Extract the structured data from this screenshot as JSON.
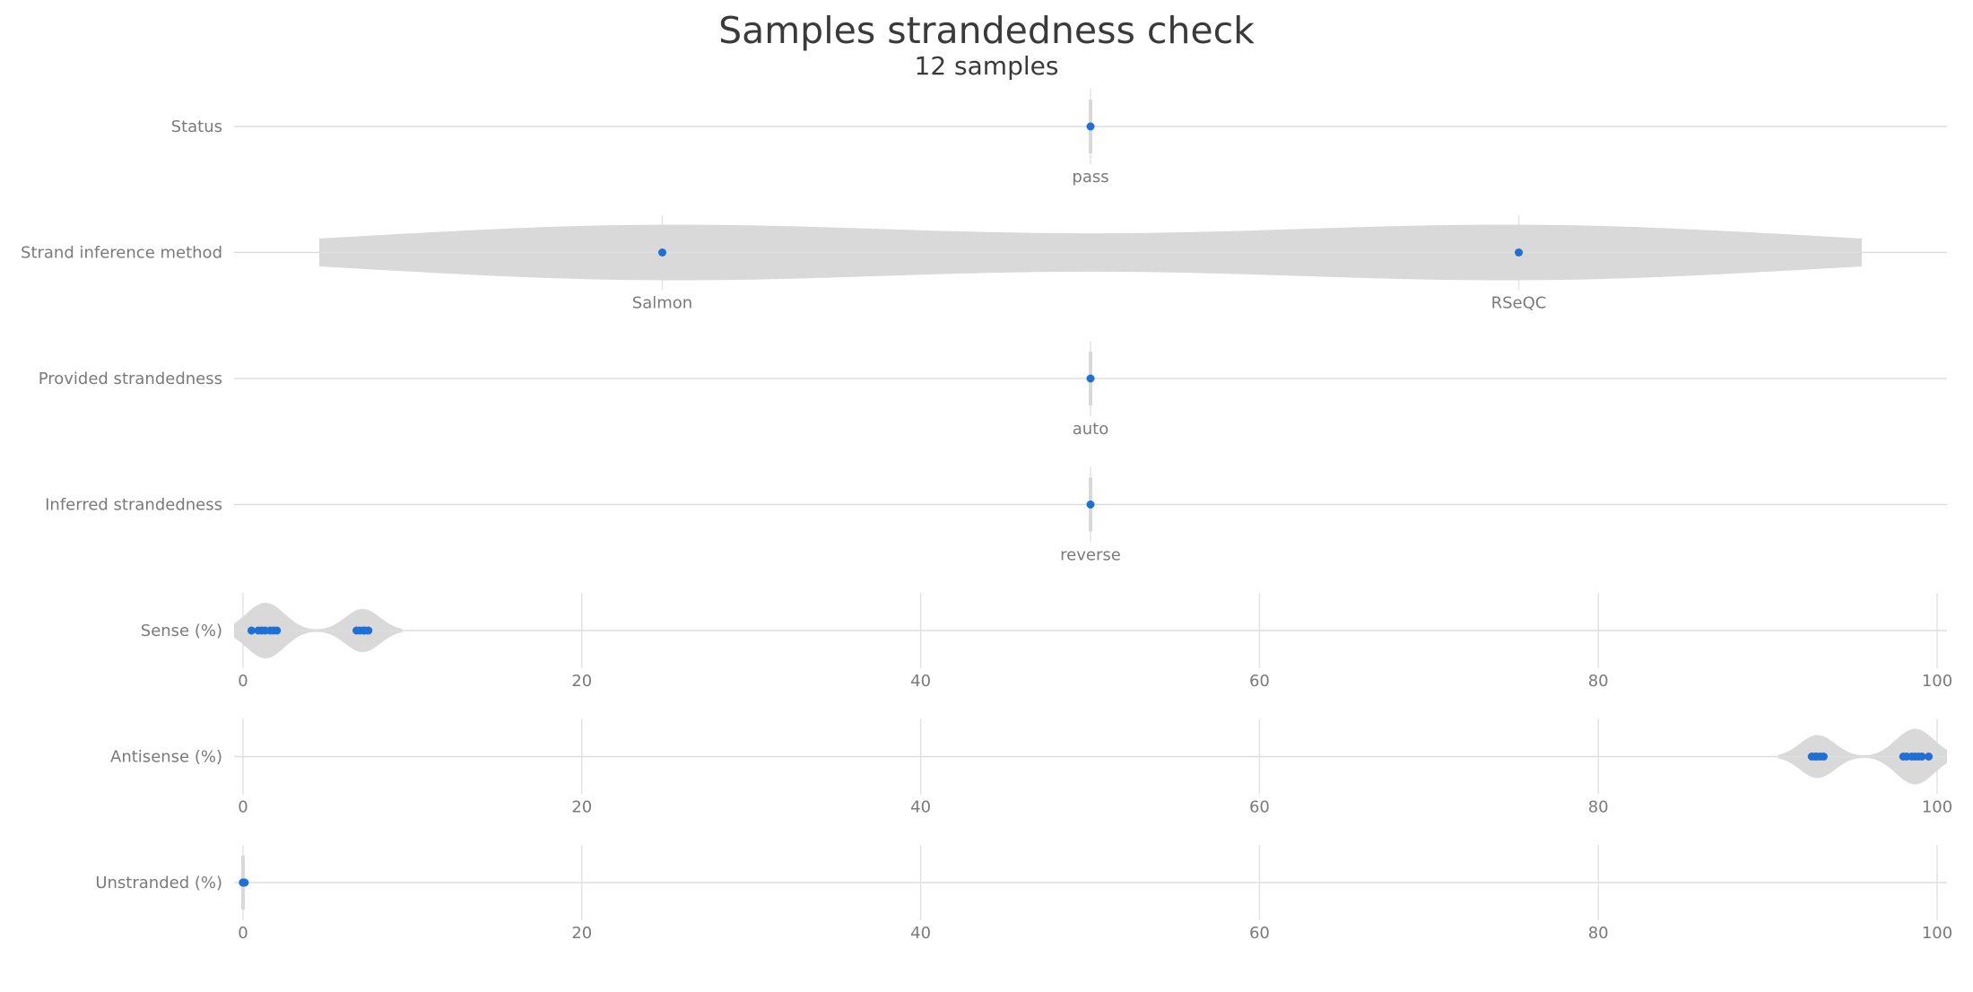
{
  "chart_data": {
    "type": "violin",
    "title": "Samples strandedness check",
    "subtitle": "12 samples",
    "point_color": "#1f6fd9",
    "violin_color": "#d9d9d9",
    "rows": [
      {
        "label": "Status",
        "kind": "categorical",
        "categories": [
          {
            "name": "pass",
            "count": 12
          }
        ]
      },
      {
        "label": "Strand inference method",
        "kind": "categorical",
        "categories": [
          {
            "name": "Salmon",
            "count": 6
          },
          {
            "name": "RSeQC",
            "count": 6
          }
        ]
      },
      {
        "label": "Provided strandedness",
        "kind": "categorical",
        "categories": [
          {
            "name": "auto",
            "count": 12
          }
        ]
      },
      {
        "label": "Inferred strandedness",
        "kind": "categorical",
        "categories": [
          {
            "name": "reverse",
            "count": 12
          }
        ]
      },
      {
        "label": "Sense (%)",
        "kind": "numeric",
        "xlim": [
          0,
          100
        ],
        "ticks": [
          0,
          20,
          40,
          60,
          80,
          100
        ],
        "values": [
          0.5,
          0.9,
          1.1,
          1.3,
          1.6,
          1.8,
          2.0,
          6.7,
          6.9,
          7.1,
          7.2,
          7.4
        ]
      },
      {
        "label": "Antisense (%)",
        "kind": "numeric",
        "xlim": [
          0,
          100
        ],
        "ticks": [
          0,
          20,
          40,
          60,
          80,
          100
        ],
        "values": [
          92.6,
          92.8,
          92.9,
          93.1,
          93.3,
          98.0,
          98.2,
          98.5,
          98.7,
          98.9,
          99.1,
          99.5
        ]
      },
      {
        "label": "Unstranded (%)",
        "kind": "numeric",
        "xlim": [
          0,
          100
        ],
        "ticks": [
          0,
          20,
          40,
          60,
          80,
          100
        ],
        "values": [
          0.0,
          0.0,
          0.0,
          0.0,
          0.0,
          0.0,
          0.0,
          0.0,
          0.05,
          0.05,
          0.05,
          0.1
        ]
      }
    ]
  }
}
